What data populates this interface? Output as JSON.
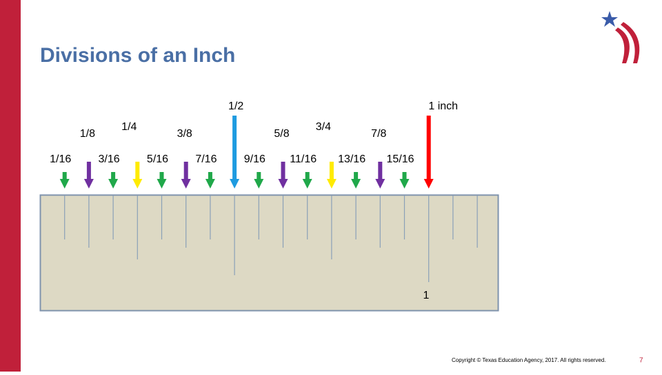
{
  "header": {
    "title": "Divisions of an Inch"
  },
  "divisions": [
    "1/16",
    "1/8",
    "3/16",
    "1/4",
    "5/16",
    "3/8",
    "7/16",
    "1/2",
    "9/16",
    "5/8",
    "11/16",
    "3/4",
    "13/16",
    "7/8",
    "15/16",
    "1 inch"
  ],
  "ruler": {
    "label": "1"
  },
  "footer": {
    "copyright": "Copyright © Texas Education Agency, 2017. All rights reserved.",
    "page_number": "7"
  }
}
